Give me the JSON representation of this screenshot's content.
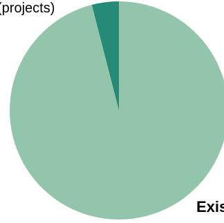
{
  "chart_data": {
    "type": "pie",
    "slices": [
      {
        "label": "(projects)",
        "value": 4,
        "color": "#258a76"
      },
      {
        "label": "Exis",
        "value": 96,
        "color": "#93c4ac"
      }
    ]
  }
}
